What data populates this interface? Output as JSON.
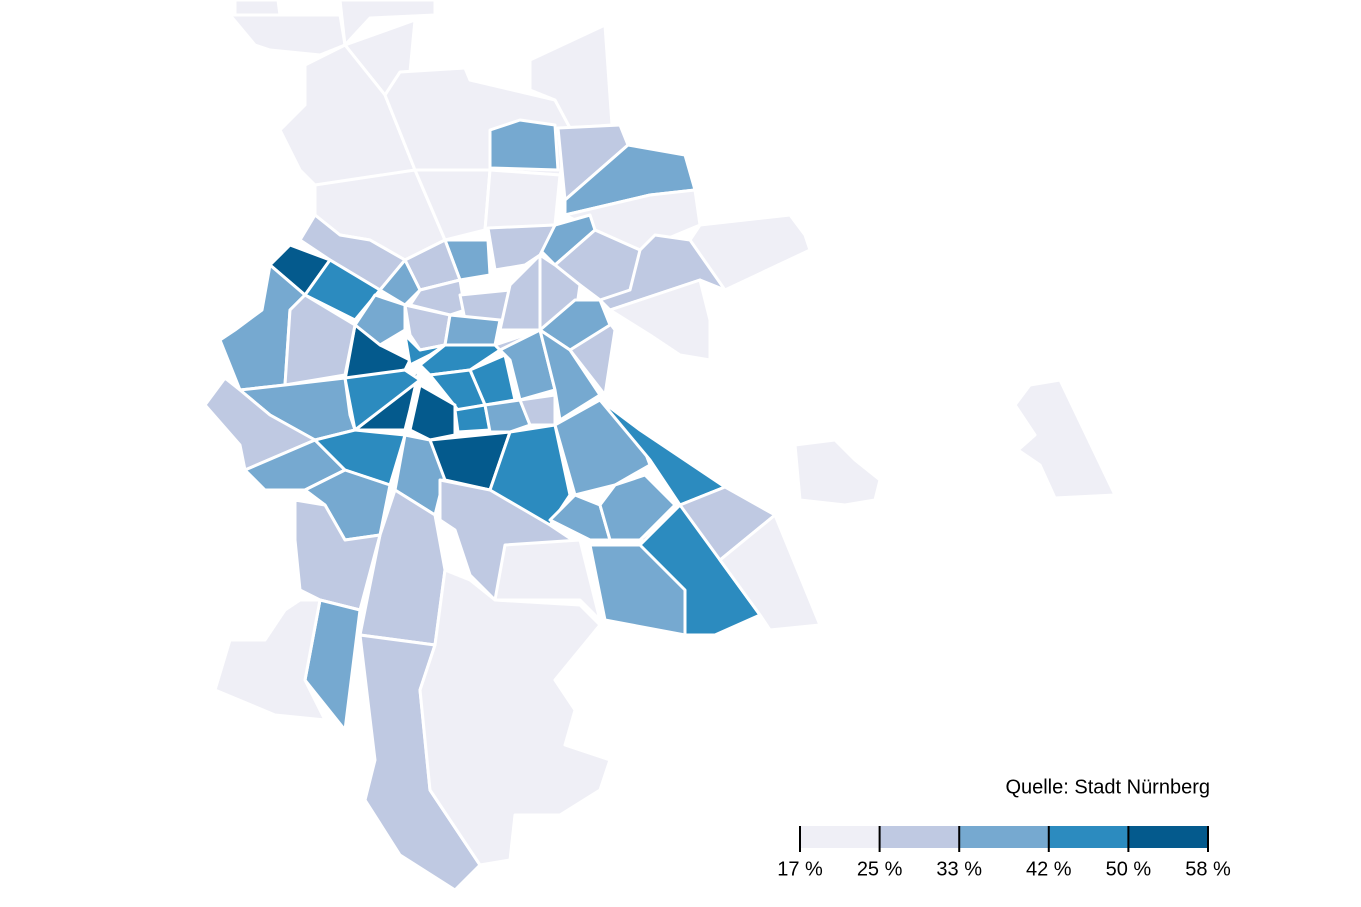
{
  "source": "Quelle: Stadt Nürnberg",
  "legend": {
    "colors": [
      "#efeff6",
      "#bfc9e2",
      "#76a9d0",
      "#2c8bbf",
      "#045a8d"
    ],
    "xlim": [
      17,
      58
    ],
    "ticks": [
      {
        "value": 17,
        "label": "17 %"
      },
      {
        "value": 25,
        "label": "25 %"
      },
      {
        "value": 33,
        "label": "33 %"
      },
      {
        "value": 42,
        "label": "42 %"
      },
      {
        "value": 50,
        "label": "50 %"
      },
      {
        "value": 58,
        "label": "58 %"
      }
    ]
  }
}
